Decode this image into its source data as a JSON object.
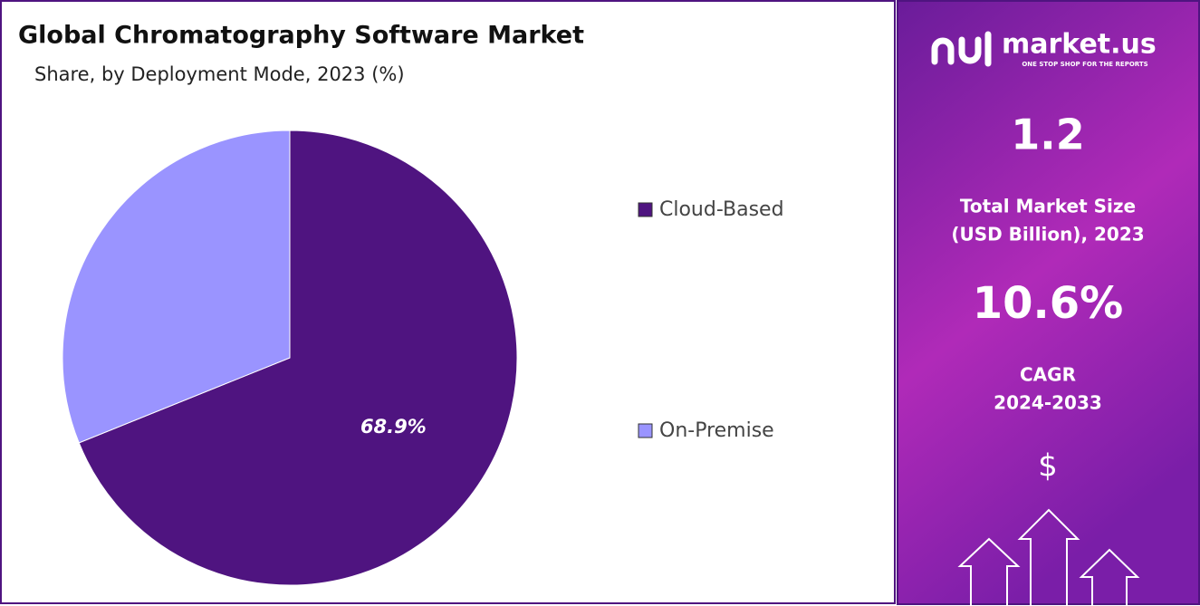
{
  "chart_data": {
    "type": "pie",
    "title": "Global Chromatography Software Market",
    "subtitle": "Share, by Deployment Mode, 2023 (%)",
    "categories": [
      "Cloud-Based",
      "On-Premise"
    ],
    "values": [
      68.9,
      31.1
    ],
    "value_labels": [
      "68.9%",
      null
    ],
    "colors": [
      "#4f1480",
      "#9a94ff"
    ],
    "legend": "right"
  },
  "side_panel": {
    "logo": "market.us",
    "tagline": "ONE STOP SHOP FOR THE REPORTS",
    "market_size": "1.2",
    "market_size_label": [
      "Total Market Size",
      "(USD Billion), 2023"
    ],
    "cagr": "10.6%",
    "cagr_label": [
      "CAGR",
      "2024-2033"
    ],
    "currency": "$"
  }
}
